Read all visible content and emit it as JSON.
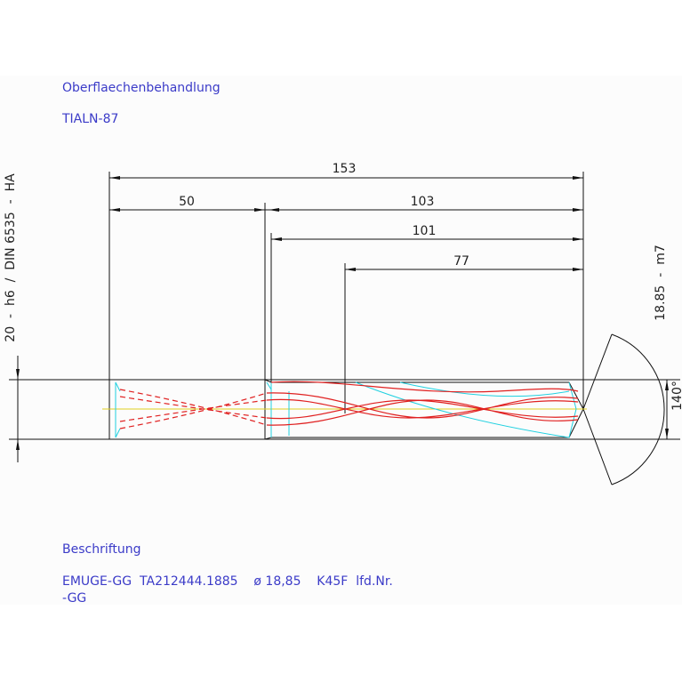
{
  "header": {
    "surface_label": "Oberflaechenbehandlung",
    "surface_value": "TIALN-87"
  },
  "dimensions": {
    "total": "153",
    "shank": "50",
    "body": "103",
    "flute": "101",
    "cut": "77",
    "diameter": "18.85  -  m7",
    "shank_diameter": "20  -  h6  /  DIN 6535  -  HA",
    "angle": "140°"
  },
  "inscription": {
    "label": "Beschriftung",
    "line1": "EMUGE-GG  TA212444.1885    ø 18,85    K45F  lfd.Nr.",
    "line2": "-GG"
  }
}
